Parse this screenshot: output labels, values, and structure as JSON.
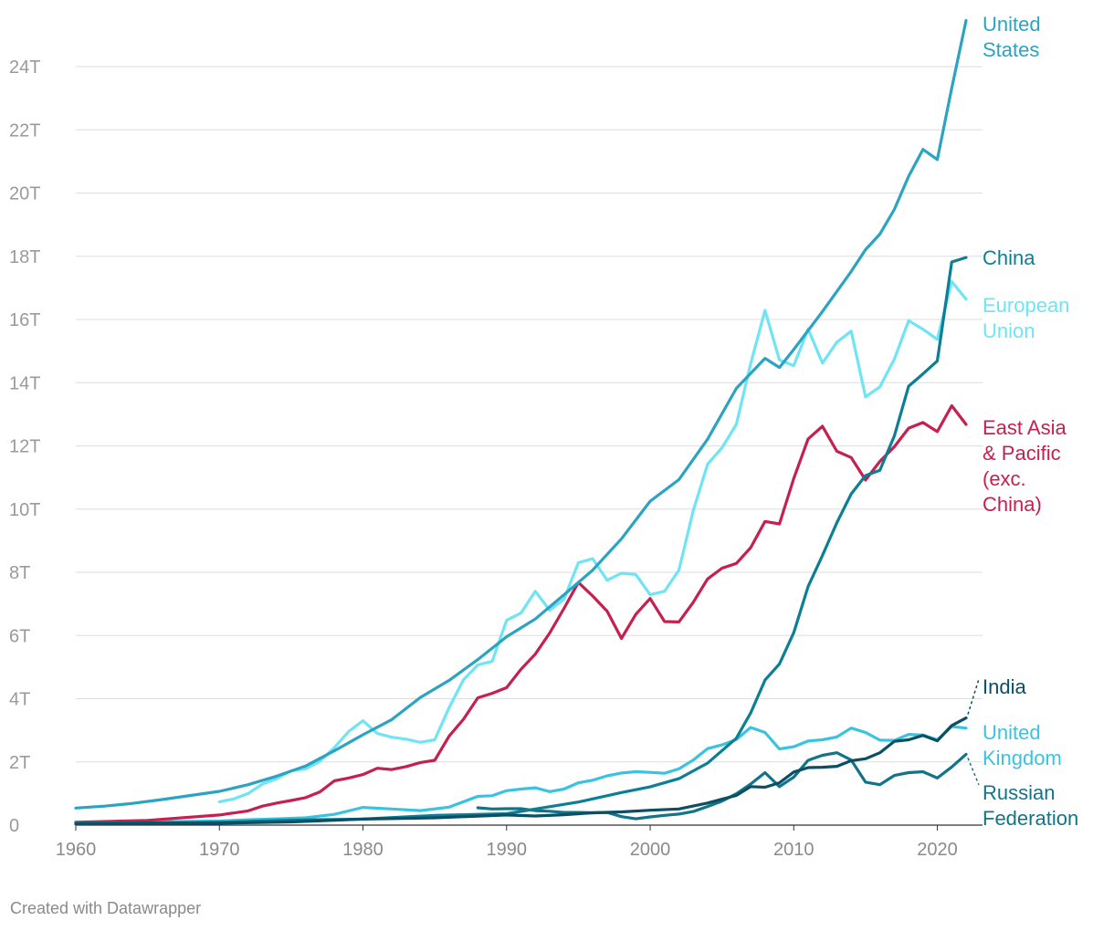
{
  "credit": "Created with Datawrapper",
  "chart_data": {
    "type": "line",
    "title": "",
    "xlabel": "",
    "ylabel": "",
    "xlim": [
      1960,
      2023
    ],
    "ylim": [
      0,
      25.5
    ],
    "x_ticks": [
      1960,
      1970,
      1980,
      1990,
      2000,
      2010,
      2020
    ],
    "x_tick_labels": [
      "1960",
      "1970",
      "1980",
      "1990",
      "2000",
      "2010",
      "2020"
    ],
    "y_ticks": [
      0,
      2,
      4,
      6,
      8,
      10,
      12,
      14,
      16,
      18,
      20,
      22,
      24
    ],
    "y_tick_labels": [
      "0",
      "2T",
      "4T",
      "6T",
      "8T",
      "10T",
      "12T",
      "14T",
      "16T",
      "18T",
      "20T",
      "22T",
      "24T"
    ],
    "grid": true,
    "series": [
      {
        "name": "United States",
        "label_lines": [
          "United",
          "States"
        ],
        "color": "#2ba3c2",
        "points": [
          [
            1960,
            0.54
          ],
          [
            1962,
            0.6
          ],
          [
            1964,
            0.69
          ],
          [
            1966,
            0.81
          ],
          [
            1968,
            0.94
          ],
          [
            1970,
            1.07
          ],
          [
            1972,
            1.28
          ],
          [
            1974,
            1.55
          ],
          [
            1976,
            1.87
          ],
          [
            1978,
            2.35
          ],
          [
            1980,
            2.86
          ],
          [
            1982,
            3.34
          ],
          [
            1984,
            4.04
          ],
          [
            1986,
            4.58
          ],
          [
            1988,
            5.24
          ],
          [
            1990,
            5.96
          ],
          [
            1992,
            6.52
          ],
          [
            1994,
            7.29
          ],
          [
            1996,
            8.07
          ],
          [
            1998,
            9.06
          ],
          [
            2000,
            10.25
          ],
          [
            2002,
            10.93
          ],
          [
            2004,
            12.21
          ],
          [
            2006,
            13.82
          ],
          [
            2008,
            14.77
          ],
          [
            2009,
            14.48
          ],
          [
            2010,
            15.05
          ],
          [
            2012,
            16.25
          ],
          [
            2014,
            17.52
          ],
          [
            2015,
            18.21
          ],
          [
            2016,
            18.7
          ],
          [
            2017,
            19.48
          ],
          [
            2018,
            20.53
          ],
          [
            2019,
            21.38
          ],
          [
            2020,
            21.06
          ],
          [
            2021,
            23.32
          ],
          [
            2022,
            25.46
          ]
        ]
      },
      {
        "name": "China",
        "label_lines": [
          "China"
        ],
        "color": "#0b7f94",
        "points": [
          [
            1960,
            0.06
          ],
          [
            1965,
            0.07
          ],
          [
            1970,
            0.09
          ],
          [
            1975,
            0.16
          ],
          [
            1980,
            0.19
          ],
          [
            1985,
            0.31
          ],
          [
            1990,
            0.36
          ],
          [
            1995,
            0.73
          ],
          [
            1998,
            1.03
          ],
          [
            2000,
            1.21
          ],
          [
            2002,
            1.47
          ],
          [
            2004,
            1.96
          ],
          [
            2006,
            2.75
          ],
          [
            2007,
            3.55
          ],
          [
            2008,
            4.59
          ],
          [
            2009,
            5.1
          ],
          [
            2010,
            6.09
          ],
          [
            2011,
            7.55
          ],
          [
            2012,
            8.53
          ],
          [
            2013,
            9.57
          ],
          [
            2014,
            10.48
          ],
          [
            2015,
            11.06
          ],
          [
            2016,
            11.23
          ],
          [
            2017,
            12.31
          ],
          [
            2018,
            13.89
          ],
          [
            2019,
            14.28
          ],
          [
            2020,
            14.69
          ],
          [
            2021,
            17.82
          ],
          [
            2022,
            17.96
          ]
        ]
      },
      {
        "name": "European Union",
        "label_lines": [
          "European",
          "Union"
        ],
        "color": "#6fe4f5",
        "points": [
          [
            1970,
            0.74
          ],
          [
            1971,
            0.83
          ],
          [
            1972,
            1.0
          ],
          [
            1973,
            1.3
          ],
          [
            1974,
            1.47
          ],
          [
            1975,
            1.72
          ],
          [
            1976,
            1.78
          ],
          [
            1977,
            2.02
          ],
          [
            1978,
            2.45
          ],
          [
            1979,
            2.96
          ],
          [
            1980,
            3.3
          ],
          [
            1981,
            2.9
          ],
          [
            1982,
            2.78
          ],
          [
            1983,
            2.72
          ],
          [
            1984,
            2.62
          ],
          [
            1985,
            2.7
          ],
          [
            1986,
            3.72
          ],
          [
            1987,
            4.6
          ],
          [
            1988,
            5.07
          ],
          [
            1989,
            5.18
          ],
          [
            1990,
            6.48
          ],
          [
            1991,
            6.71
          ],
          [
            1992,
            7.4
          ],
          [
            1993,
            6.8
          ],
          [
            1994,
            7.15
          ],
          [
            1995,
            8.3
          ],
          [
            1996,
            8.43
          ],
          [
            1997,
            7.75
          ],
          [
            1998,
            7.97
          ],
          [
            1999,
            7.93
          ],
          [
            2000,
            7.29
          ],
          [
            2001,
            7.4
          ],
          [
            2002,
            8.07
          ],
          [
            2003,
            9.95
          ],
          [
            2004,
            11.42
          ],
          [
            2005,
            11.94
          ],
          [
            2006,
            12.68
          ],
          [
            2007,
            14.6
          ],
          [
            2008,
            16.29
          ],
          [
            2009,
            14.72
          ],
          [
            2010,
            14.54
          ],
          [
            2011,
            15.7
          ],
          [
            2012,
            14.62
          ],
          [
            2013,
            15.28
          ],
          [
            2014,
            15.63
          ],
          [
            2015,
            13.55
          ],
          [
            2016,
            13.87
          ],
          [
            2017,
            14.74
          ],
          [
            2018,
            15.96
          ],
          [
            2019,
            15.69
          ],
          [
            2020,
            15.37
          ],
          [
            2021,
            17.2
          ],
          [
            2022,
            16.64
          ]
        ]
      },
      {
        "name": "East Asia & Pacific (exc. China)",
        "label_lines": [
          "East Asia",
          "& Pacific",
          "(exc.",
          "China)"
        ],
        "color": "#c5204f",
        "points": [
          [
            1960,
            0.09
          ],
          [
            1965,
            0.15
          ],
          [
            1970,
            0.32
          ],
          [
            1972,
            0.45
          ],
          [
            1973,
            0.6
          ],
          [
            1974,
            0.7
          ],
          [
            1975,
            0.78
          ],
          [
            1976,
            0.87
          ],
          [
            1977,
            1.05
          ],
          [
            1978,
            1.4
          ],
          [
            1979,
            1.49
          ],
          [
            1980,
            1.6
          ],
          [
            1981,
            1.8
          ],
          [
            1982,
            1.76
          ],
          [
            1983,
            1.85
          ],
          [
            1984,
            1.98
          ],
          [
            1985,
            2.05
          ],
          [
            1986,
            2.82
          ],
          [
            1987,
            3.35
          ],
          [
            1988,
            4.03
          ],
          [
            1989,
            4.17
          ],
          [
            1990,
            4.35
          ],
          [
            1991,
            4.93
          ],
          [
            1992,
            5.41
          ],
          [
            1993,
            6.08
          ],
          [
            1994,
            6.86
          ],
          [
            1995,
            7.68
          ],
          [
            1996,
            7.25
          ],
          [
            1997,
            6.77
          ],
          [
            1998,
            5.91
          ],
          [
            1999,
            6.67
          ],
          [
            2000,
            7.17
          ],
          [
            2001,
            6.44
          ],
          [
            2002,
            6.43
          ],
          [
            2003,
            7.05
          ],
          [
            2004,
            7.79
          ],
          [
            2005,
            8.13
          ],
          [
            2006,
            8.28
          ],
          [
            2007,
            8.78
          ],
          [
            2008,
            9.61
          ],
          [
            2009,
            9.53
          ],
          [
            2010,
            10.97
          ],
          [
            2011,
            12.22
          ],
          [
            2012,
            12.62
          ],
          [
            2013,
            11.83
          ],
          [
            2014,
            11.63
          ],
          [
            2015,
            10.92
          ],
          [
            2016,
            11.51
          ],
          [
            2017,
            11.97
          ],
          [
            2018,
            12.56
          ],
          [
            2019,
            12.74
          ],
          [
            2020,
            12.45
          ],
          [
            2021,
            13.27
          ],
          [
            2022,
            12.68
          ]
        ]
      },
      {
        "name": "India",
        "label_lines": [
          "India"
        ],
        "color": "#0a4f64",
        "points": [
          [
            1960,
            0.04
          ],
          [
            1965,
            0.06
          ],
          [
            1970,
            0.06
          ],
          [
            1975,
            0.1
          ],
          [
            1980,
            0.19
          ],
          [
            1985,
            0.23
          ],
          [
            1990,
            0.32
          ],
          [
            1992,
            0.29
          ],
          [
            1994,
            0.33
          ],
          [
            1996,
            0.39
          ],
          [
            1998,
            0.42
          ],
          [
            2000,
            0.47
          ],
          [
            2002,
            0.51
          ],
          [
            2004,
            0.7
          ],
          [
            2005,
            0.82
          ],
          [
            2006,
            0.94
          ],
          [
            2007,
            1.22
          ],
          [
            2008,
            1.2
          ],
          [
            2009,
            1.34
          ],
          [
            2010,
            1.68
          ],
          [
            2011,
            1.82
          ],
          [
            2012,
            1.83
          ],
          [
            2013,
            1.86
          ],
          [
            2014,
            2.04
          ],
          [
            2015,
            2.1
          ],
          [
            2016,
            2.29
          ],
          [
            2017,
            2.65
          ],
          [
            2018,
            2.7
          ],
          [
            2019,
            2.84
          ],
          [
            2020,
            2.67
          ],
          [
            2021,
            3.15
          ],
          [
            2022,
            3.39
          ]
        ]
      },
      {
        "name": "United Kingdom",
        "label_lines": [
          "United",
          "Kingdom"
        ],
        "color": "#3ac3e0",
        "points": [
          [
            1960,
            0.07
          ],
          [
            1965,
            0.1
          ],
          [
            1970,
            0.13
          ],
          [
            1972,
            0.17
          ],
          [
            1974,
            0.2
          ],
          [
            1976,
            0.23
          ],
          [
            1978,
            0.34
          ],
          [
            1980,
            0.56
          ],
          [
            1982,
            0.51
          ],
          [
            1984,
            0.46
          ],
          [
            1986,
            0.57
          ],
          [
            1988,
            0.91
          ],
          [
            1989,
            0.93
          ],
          [
            1990,
            1.09
          ],
          [
            1991,
            1.14
          ],
          [
            1992,
            1.18
          ],
          [
            1993,
            1.06
          ],
          [
            1994,
            1.14
          ],
          [
            1995,
            1.34
          ],
          [
            1996,
            1.42
          ],
          [
            1997,
            1.56
          ],
          [
            1998,
            1.65
          ],
          [
            1999,
            1.69
          ],
          [
            2000,
            1.67
          ],
          [
            2001,
            1.64
          ],
          [
            2002,
            1.78
          ],
          [
            2003,
            2.06
          ],
          [
            2004,
            2.42
          ],
          [
            2005,
            2.54
          ],
          [
            2006,
            2.71
          ],
          [
            2007,
            3.09
          ],
          [
            2008,
            2.93
          ],
          [
            2009,
            2.41
          ],
          [
            2010,
            2.48
          ],
          [
            2011,
            2.66
          ],
          [
            2012,
            2.7
          ],
          [
            2013,
            2.79
          ],
          [
            2014,
            3.07
          ],
          [
            2015,
            2.93
          ],
          [
            2016,
            2.69
          ],
          [
            2017,
            2.68
          ],
          [
            2018,
            2.87
          ],
          [
            2019,
            2.85
          ],
          [
            2020,
            2.7
          ],
          [
            2021,
            3.12
          ],
          [
            2022,
            3.07
          ]
        ]
      },
      {
        "name": "Russian Federation",
        "label_lines": [
          "Russian",
          "Federation"
        ],
        "color": "#137489",
        "points": [
          [
            1988,
            0.55
          ],
          [
            1989,
            0.51
          ],
          [
            1990,
            0.52
          ],
          [
            1991,
            0.52
          ],
          [
            1992,
            0.46
          ],
          [
            1993,
            0.44
          ],
          [
            1994,
            0.4
          ],
          [
            1995,
            0.4
          ],
          [
            1996,
            0.39
          ],
          [
            1997,
            0.4
          ],
          [
            1998,
            0.27
          ],
          [
            1999,
            0.2
          ],
          [
            2000,
            0.26
          ],
          [
            2001,
            0.31
          ],
          [
            2002,
            0.35
          ],
          [
            2003,
            0.43
          ],
          [
            2004,
            0.59
          ],
          [
            2005,
            0.76
          ],
          [
            2006,
            0.99
          ],
          [
            2007,
            1.3
          ],
          [
            2008,
            1.66
          ],
          [
            2009,
            1.22
          ],
          [
            2010,
            1.52
          ],
          [
            2011,
            2.05
          ],
          [
            2012,
            2.21
          ],
          [
            2013,
            2.29
          ],
          [
            2014,
            2.06
          ],
          [
            2015,
            1.36
          ],
          [
            2016,
            1.28
          ],
          [
            2017,
            1.57
          ],
          [
            2018,
            1.66
          ],
          [
            2019,
            1.69
          ],
          [
            2020,
            1.49
          ],
          [
            2021,
            1.84
          ],
          [
            2022,
            2.24
          ]
        ]
      }
    ]
  }
}
